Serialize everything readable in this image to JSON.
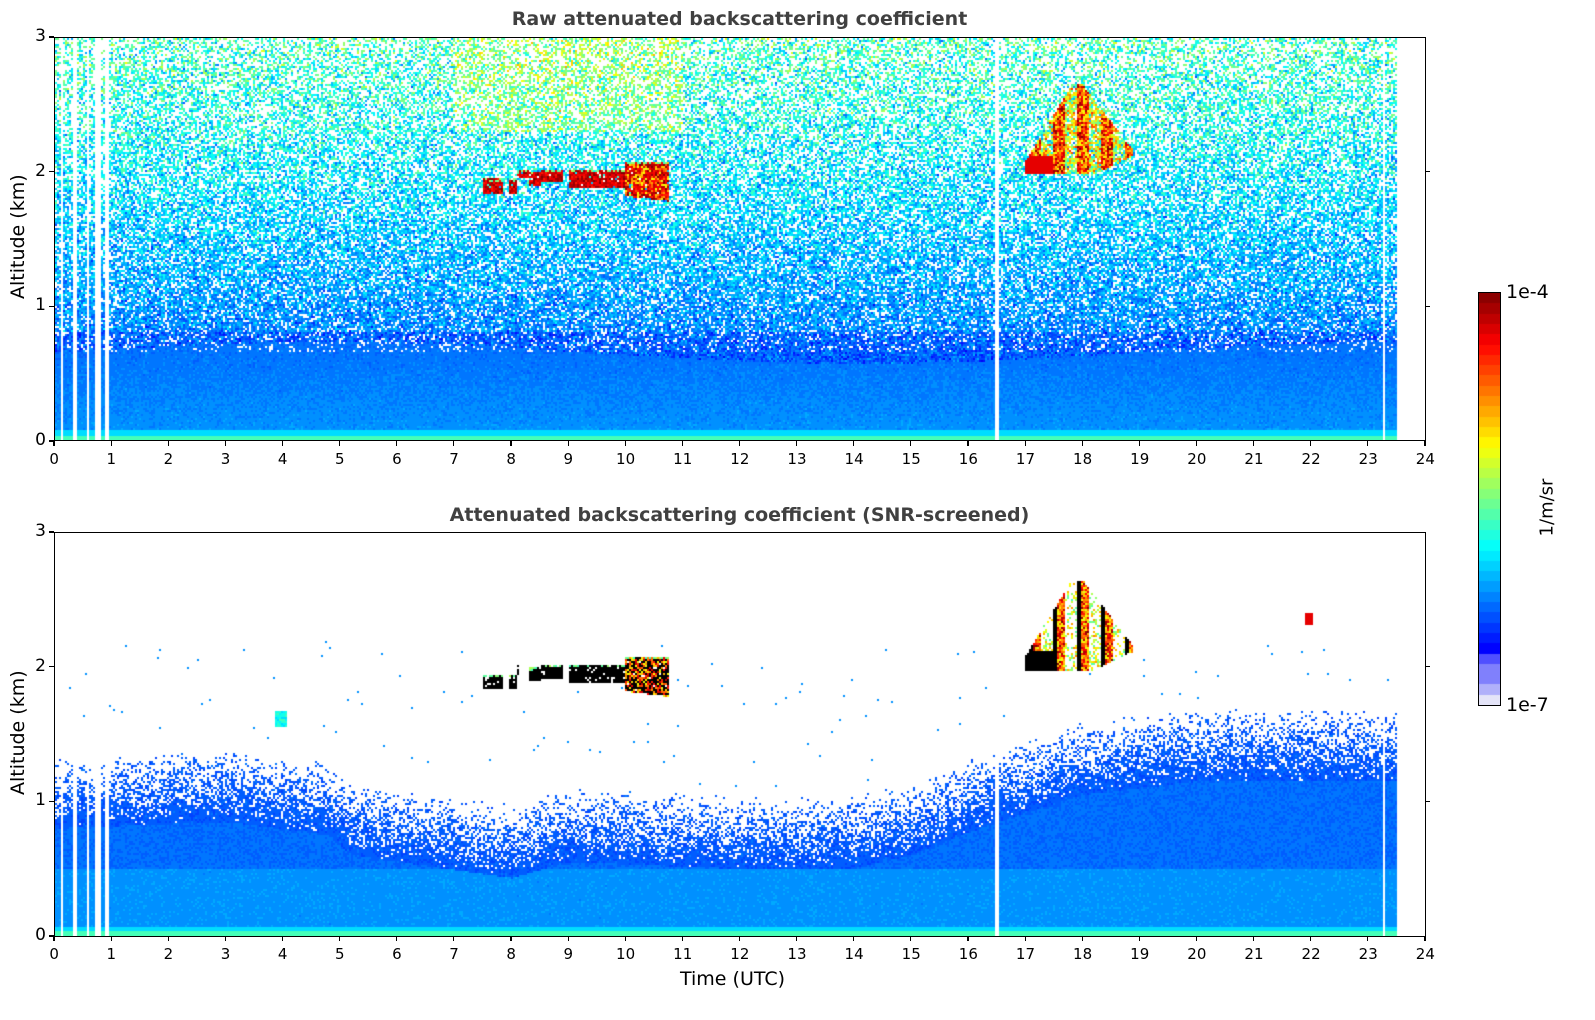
{
  "chart_data": [
    {
      "type": "heatmap",
      "title": "Raw attenuated backscattering coefficient",
      "xlabel": "",
      "ylabel": "Altitude (km)",
      "xlim": [
        0,
        24
      ],
      "ylim": [
        0,
        3
      ],
      "xticks": [
        "0",
        "1",
        "2",
        "3",
        "4",
        "5",
        "6",
        "7",
        "8",
        "9",
        "10",
        "11",
        "12",
        "13",
        "14",
        "15",
        "16",
        "17",
        "18",
        "19",
        "20",
        "21",
        "22",
        "23",
        "24"
      ],
      "yticks": [
        "0",
        "1",
        "2",
        "3"
      ],
      "data_time_range": [
        0,
        23.5
      ],
      "missing_data_gaps_h": [
        [
          0.1,
          0.15
        ],
        [
          0.3,
          0.4
        ],
        [
          0.55,
          0.6
        ],
        [
          0.7,
          0.8
        ],
        [
          0.88,
          0.93
        ],
        [
          16.45,
          16.55
        ],
        [
          23.28,
          23.3
        ]
      ],
      "features": [
        {
          "name": "boundary layer aerosol",
          "time_h": [
            0,
            23.5
          ],
          "altitude_km": [
            0,
            0.7
          ],
          "level": "~1e-6"
        },
        {
          "name": "cloud",
          "time_h": [
            7.5,
            10.7
          ],
          "altitude_km": [
            1.8,
            2.05
          ],
          "level": "~1e-4"
        },
        {
          "name": "cloud",
          "time_h": [
            17.2,
            19.1
          ],
          "altitude_km": [
            2.0,
            2.65
          ],
          "level": "~1e-4"
        }
      ]
    },
    {
      "type": "heatmap",
      "title": "Attenuated backscattering coefficient (SNR-screened)",
      "xlabel": "Time (UTC)",
      "ylabel": "Altitude (km)",
      "xlim": [
        0,
        24
      ],
      "ylim": [
        0,
        3
      ],
      "xticks": [
        "0",
        "1",
        "2",
        "3",
        "4",
        "5",
        "6",
        "7",
        "8",
        "9",
        "10",
        "11",
        "12",
        "13",
        "14",
        "15",
        "16",
        "17",
        "18",
        "19",
        "20",
        "21",
        "22",
        "23",
        "24"
      ],
      "yticks": [
        "0",
        "1",
        "2",
        "3"
      ],
      "data_time_range": [
        0,
        23.5
      ],
      "boundary_layer_top_km": [
        {
          "time_h": 0,
          "top": 1.05
        },
        {
          "time_h": 3,
          "top": 1.1
        },
        {
          "time_h": 4.8,
          "top": 1.0
        },
        {
          "time_h": 5.2,
          "top": 0.85
        },
        {
          "time_h": 8,
          "top": 0.68
        },
        {
          "time_h": 9,
          "top": 0.8
        },
        {
          "time_h": 12,
          "top": 0.75
        },
        {
          "time_h": 14,
          "top": 0.75
        },
        {
          "time_h": 15,
          "top": 0.85
        },
        {
          "time_h": 16.5,
          "top": 1.1
        },
        {
          "time_h": 18,
          "top": 1.3
        },
        {
          "time_h": 20,
          "top": 1.4
        },
        {
          "time_h": 23.5,
          "top": 1.4
        }
      ],
      "features": [
        {
          "name": "cloud",
          "time_h": [
            7.5,
            10.7
          ],
          "altitude_km": [
            1.8,
            2.05
          ],
          "level": ">1e-4"
        },
        {
          "name": "cloud",
          "time_h": [
            17,
            19.1
          ],
          "altitude_km": [
            1.95,
            2.7
          ],
          "level": ">1e-4"
        },
        {
          "name": "small aerosol patch",
          "time_h": [
            3.8,
            4.2
          ],
          "altitude_km": [
            1.5,
            1.7
          ],
          "level": "~1e-5"
        },
        {
          "name": "small cloud",
          "time_h": [
            21.9,
            22.1
          ],
          "altitude_km": [
            2.3,
            2.4
          ],
          "level": "~1e-4"
        }
      ]
    }
  ],
  "colorbar": {
    "max_label": "1e-4",
    "min_label": "1e-7",
    "unit": "1/m/sr",
    "scale": "log",
    "range": [
      1e-07,
      0.0001
    ],
    "colormap": "jet"
  },
  "colors": {
    "title": "#404040",
    "axis": "#000000",
    "background": "#ffffff"
  }
}
